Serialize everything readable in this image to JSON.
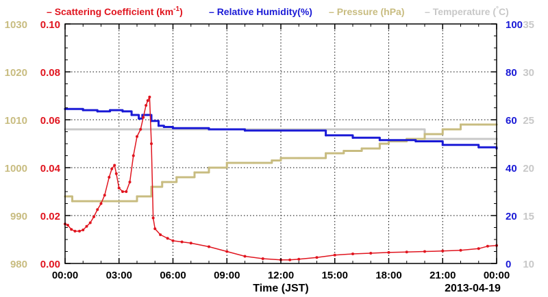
{
  "chart_data": {
    "type": "line",
    "title": "",
    "xlabel": "Time (JST)",
    "date_label": "2013-04-19",
    "grid": true,
    "legend_position": "top",
    "x_ticks": [
      "00:00",
      "03:00",
      "06:00",
      "09:00",
      "12:00",
      "15:00",
      "18:00",
      "21:00",
      "00:00"
    ],
    "xlim": [
      0,
      24
    ],
    "axes": [
      {
        "id": "scat",
        "side": "left-inner",
        "ylim": [
          0.0,
          0.1
        ],
        "ticks": [
          "0.00",
          "0.02",
          "0.04",
          "0.06",
          "0.08",
          "0.10"
        ],
        "color": "#e0141e"
      },
      {
        "id": "pres",
        "side": "left-outer",
        "ylim": [
          980,
          1030
        ],
        "ticks": [
          "980",
          "990",
          "1000",
          "1010",
          "1020",
          "1030"
        ],
        "color": "#c8bc80"
      },
      {
        "id": "rh",
        "side": "right-inner",
        "ylim": [
          0,
          100
        ],
        "ticks": [
          "0",
          "20",
          "40",
          "60",
          "80",
          "100"
        ],
        "color": "#1a1ad6"
      },
      {
        "id": "temp",
        "side": "right-outer",
        "ylim": [
          10,
          35
        ],
        "ticks": [
          "10",
          "15",
          "20",
          "25",
          "30",
          "35"
        ],
        "color": "#c8c8c8"
      }
    ],
    "legend": [
      {
        "label_main": "Scattering Coefficient (km",
        "label_sup": "-1",
        "label_end": ")",
        "color": "#e0141e"
      },
      {
        "label_main": "Relative Humidity(%)",
        "label_sup": "",
        "label_end": "",
        "color": "#1a1ad6"
      },
      {
        "label_main": "Pressure (hPa)",
        "label_sup": "",
        "label_end": "",
        "color": "#c8bc80"
      },
      {
        "label_main": "Temperature (",
        "label_sup": "°",
        "label_end": "C)",
        "color": "#c8c8c8"
      }
    ],
    "series": [
      {
        "name": "Scattering Coefficient (km-1)",
        "axis": "scat",
        "color": "#e0141e",
        "style": "line-markers",
        "x": [
          0.0,
          0.15,
          0.35,
          0.55,
          0.8,
          1.0,
          1.2,
          1.4,
          1.6,
          1.8,
          2.0,
          2.2,
          2.45,
          2.6,
          2.75,
          2.85,
          3.0,
          3.2,
          3.4,
          3.6,
          3.8,
          4.0,
          4.2,
          4.35,
          4.5,
          4.6,
          4.7,
          4.8,
          4.9,
          5.0,
          5.3,
          5.7,
          6.0,
          6.5,
          7.0,
          8.0,
          9.0,
          10.0,
          11.0,
          12.0,
          12.5,
          13.0,
          14.0,
          15.0,
          16.0,
          17.0,
          18.0,
          19.0,
          20.0,
          21.0,
          22.0,
          23.0,
          23.5,
          24.0
        ],
        "y": [
          0.0165,
          0.016,
          0.0142,
          0.0135,
          0.0135,
          0.014,
          0.0155,
          0.017,
          0.0195,
          0.0225,
          0.025,
          0.0285,
          0.036,
          0.0395,
          0.041,
          0.0375,
          0.0315,
          0.03,
          0.03,
          0.034,
          0.045,
          0.053,
          0.056,
          0.061,
          0.066,
          0.068,
          0.0695,
          0.05,
          0.019,
          0.0145,
          0.012,
          0.0105,
          0.0095,
          0.009,
          0.0085,
          0.007,
          0.005,
          0.003,
          0.002,
          0.0015,
          0.0015,
          0.0018,
          0.0025,
          0.0035,
          0.004,
          0.0043,
          0.0046,
          0.0048,
          0.005,
          0.0052,
          0.0055,
          0.0062,
          0.0072,
          0.0075
        ]
      },
      {
        "name": "Relative Humidity(%)",
        "axis": "rh",
        "color": "#1a1ad6",
        "style": "step",
        "x": [
          0.0,
          1.0,
          1.8,
          2.5,
          3.2,
          3.7,
          4.1,
          4.3,
          4.6,
          4.8,
          5.2,
          5.5,
          6.0,
          8.0,
          10.0,
          14.5,
          16.0,
          17.5,
          19.5,
          21.0,
          23.0,
          24.0
        ],
        "y": [
          64.5,
          64,
          63.5,
          64,
          63.5,
          62,
          60.5,
          62,
          62,
          59.5,
          57.5,
          57,
          56.5,
          56,
          55.5,
          53.5,
          52.5,
          51.5,
          51,
          49.5,
          48.5,
          48
        ]
      },
      {
        "name": "Pressure (hPa)",
        "axis": "pres",
        "color": "#c8bc80",
        "style": "step",
        "x": [
          0.0,
          0.4,
          1.5,
          3.0,
          4.0,
          4.8,
          5.4,
          6.2,
          7.2,
          8.0,
          9.0,
          10.5,
          11.5,
          12.0,
          13.0,
          14.5,
          15.5,
          16.5,
          17.5,
          18.0,
          19.0,
          20.0,
          21.0,
          22.0,
          23.0,
          24.0
        ],
        "y": [
          994,
          993,
          993,
          993,
          994,
          996,
          997,
          998,
          999,
          1000,
          1001,
          1001,
          1001.5,
          1002,
          1002,
          1003,
          1003.5,
          1004,
          1005,
          1005.5,
          1006,
          1007,
          1008,
          1009,
          1009,
          1009
        ]
      },
      {
        "name": "Temperature (°C)",
        "axis": "temp",
        "color": "#c8c8c8",
        "style": "step",
        "x": [
          0.0,
          19.8,
          20.0,
          24.0
        ],
        "y": [
          24.0,
          24.0,
          23.0,
          23.0
        ]
      }
    ]
  }
}
